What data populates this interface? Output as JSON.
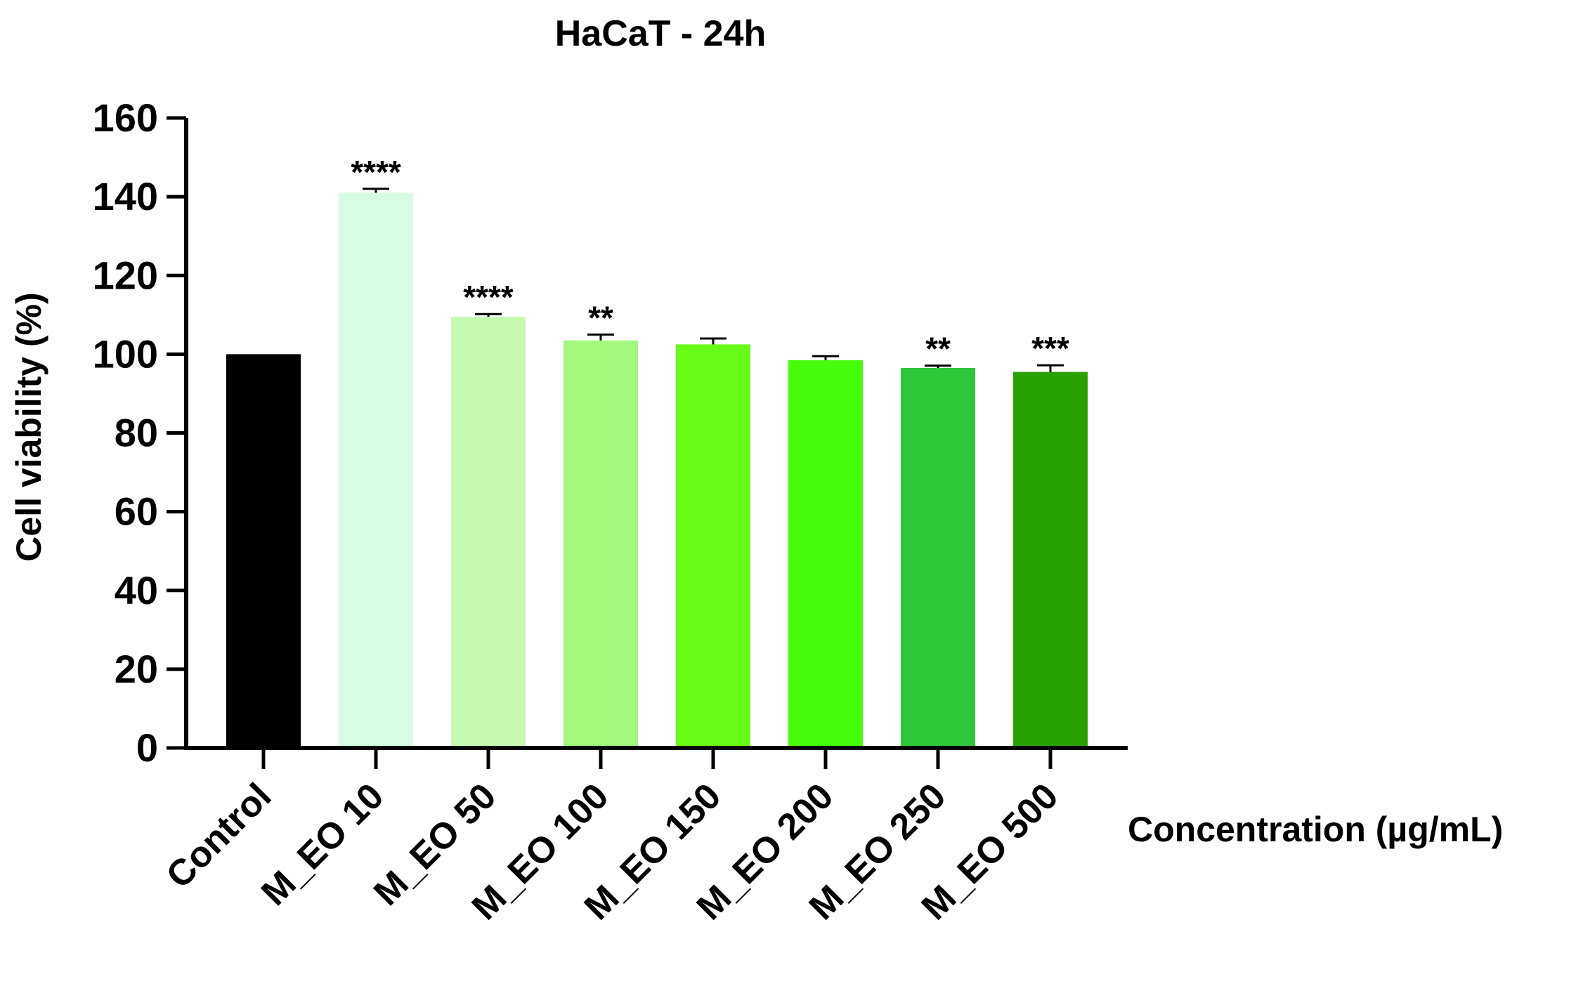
{
  "chart_data": {
    "type": "bar",
    "title": "HaCaT - 24h",
    "xlabel": "Concentration (µg/mL)",
    "ylabel": "Cell viability (%)",
    "ylim": [
      0,
      160
    ],
    "yticks": [
      "0",
      "20",
      "40",
      "60",
      "80",
      "100",
      "120",
      "140",
      "160"
    ],
    "categories": [
      "Control",
      "M_EO 10",
      "M_EO 50",
      "M_EO 100",
      "M_EO 150",
      "M_EO 200",
      "M_EO 250",
      "M_EO 500"
    ],
    "values": [
      100,
      141,
      109.5,
      103.5,
      102.5,
      98.5,
      96.5,
      95.5
    ],
    "errors": [
      0,
      1,
      0.7,
      1.5,
      1.5,
      1,
      0.6,
      1.7
    ],
    "significance": [
      "",
      "****",
      "****",
      "**",
      "",
      "",
      "**",
      "***"
    ],
    "colors": [
      "#000000",
      "#d4fde3",
      "#c8f9b0",
      "#a3f77d",
      "#66fc16",
      "#47fc0b",
      "#2ec73a",
      "#28a203"
    ],
    "grid": false,
    "legend": "none"
  }
}
